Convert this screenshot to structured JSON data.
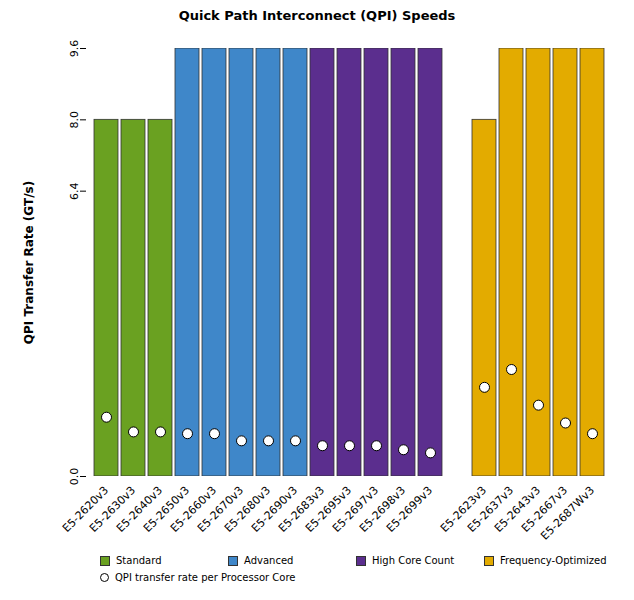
{
  "chart_data": {
    "type": "bar",
    "title": "Quick Path Interconnect (QPI) Speeds",
    "y_label": "QPI Transfer Rate (GT/s)",
    "categories": [
      "E5-2620v3",
      "E5-2630v3",
      "E5-2640v3",
      "E5-2650v3",
      "E5-2660v3",
      "E5-2670v3",
      "E5-2680v3",
      "E5-2690v3",
      "E5-2683v3",
      "E5-2695v3",
      "E5-2697v3",
      "E5-2698v3",
      "E5-2699v3",
      null,
      "E5-2623v3",
      "E5-2637v3",
      "E5-2643v3",
      "E5-2667v3",
      "E5-2687Wv3"
    ],
    "series": [
      {
        "name": "Standard",
        "type": "bar",
        "color": "#6aa121",
        "values": [
          8.0,
          8.0,
          8.0,
          null,
          null,
          null,
          null,
          null,
          null,
          null,
          null,
          null,
          null,
          null,
          null,
          null,
          null,
          null,
          null
        ]
      },
      {
        "name": "Advanced",
        "type": "bar",
        "color": "#3f87c9",
        "values": [
          null,
          null,
          null,
          9.6,
          9.6,
          9.6,
          9.6,
          9.6,
          null,
          null,
          null,
          null,
          null,
          null,
          null,
          null,
          null,
          null,
          null
        ]
      },
      {
        "name": "High Core Count",
        "type": "bar",
        "color": "#5b2e8e",
        "values": [
          null,
          null,
          null,
          null,
          null,
          null,
          null,
          null,
          9.6,
          9.6,
          9.6,
          9.6,
          9.6,
          null,
          null,
          null,
          null,
          null,
          null
        ]
      },
      {
        "name": "Frequency-Optimized",
        "type": "bar",
        "color": "#e3ab00",
        "values": [
          null,
          null,
          null,
          null,
          null,
          null,
          null,
          null,
          null,
          null,
          null,
          null,
          null,
          null,
          8.0,
          9.6,
          9.6,
          9.6,
          9.6
        ]
      },
      {
        "name": "QPI transfer rate per Processor Core",
        "type": "scatter",
        "marker": "circle",
        "color": "#ffffff",
        "values": [
          1.33,
          1.0,
          1.0,
          0.96,
          0.96,
          0.8,
          0.8,
          0.8,
          0.69,
          0.69,
          0.69,
          0.6,
          0.53,
          null,
          2.0,
          2.4,
          1.6,
          1.2,
          0.96
        ]
      }
    ],
    "ylim": [
      0,
      9.6
    ],
    "yticks": [
      {
        "value": 0,
        "label": "0.0"
      },
      6.4,
      {
        "value": 8,
        "label": "8.0"
      },
      9.6
    ],
    "grid": false,
    "legend": "bottom"
  }
}
